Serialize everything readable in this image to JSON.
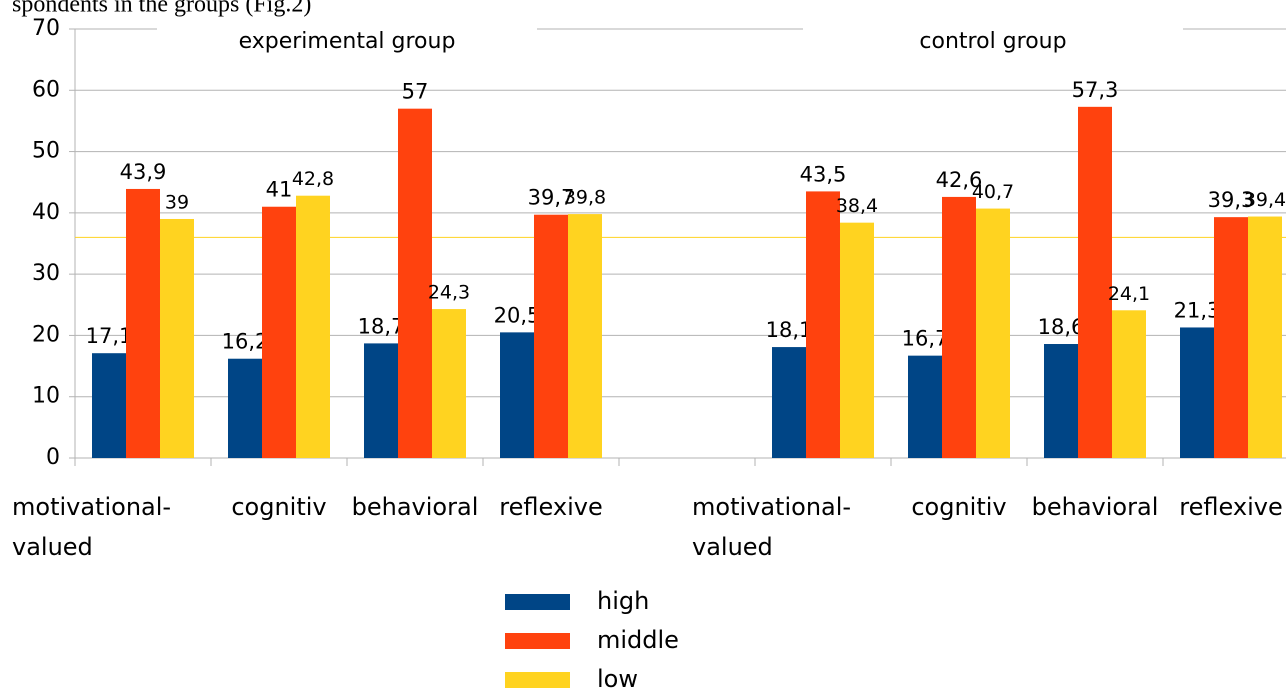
{
  "chart_data": {
    "type": "bar",
    "caption": "spondents in the groups (Fig.2)",
    "annotations": [
      "experimental group",
      "control group"
    ],
    "categories": [
      "motivational-valued",
      "cognitiv",
      "behavioral",
      "reflexive",
      null,
      "motivational-valued",
      "cognitiv",
      "behavioral",
      "reflexive"
    ],
    "series": [
      {
        "name": "high",
        "color": "#004586",
        "values": [
          17.1,
          16.2,
          18.7,
          20.5,
          null,
          18.1,
          16.7,
          18.6,
          21.3
        ],
        "value_labels": [
          "17,1",
          "16,2",
          "18,7",
          "20,5",
          null,
          "18,1",
          "16,7",
          "18,6",
          "21,3"
        ]
      },
      {
        "name": "middle",
        "color": "#ff420e",
        "values": [
          43.9,
          41,
          57,
          39.7,
          null,
          43.5,
          42.6,
          57.3,
          39.3
        ],
        "value_labels": [
          "43,9",
          "41",
          "57",
          "39,7",
          null,
          "43,5",
          "42,6",
          "57,3",
          "39,3"
        ]
      },
      {
        "name": "low",
        "color": "#ffd320",
        "values": [
          39,
          42.8,
          24.3,
          39.8,
          null,
          38.4,
          40.7,
          24.1,
          39.4
        ],
        "value_labels": [
          "39",
          "42,8",
          "24,3",
          "39,8",
          null,
          "38,4",
          "40,7",
          "24,1",
          "39,4"
        ]
      }
    ],
    "reference_line": {
      "value": 36,
      "color": "#ffd320"
    },
    "ylim": [
      0,
      70
    ],
    "yticks": [
      0,
      10,
      20,
      30,
      40,
      50,
      60,
      70
    ],
    "grid": true
  }
}
